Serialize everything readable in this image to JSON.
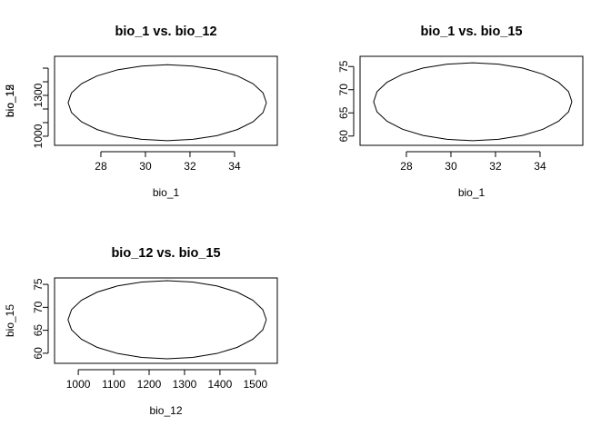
{
  "chart_data": [
    {
      "type": "line",
      "title": "bio_1 vs. bio_12",
      "x_label": "bio_1",
      "y_label": "bio_12",
      "color": "#000000",
      "x": [
        35.43,
        35.28,
        34.83,
        34.13,
        33.21,
        32.13,
        30.98,
        29.83,
        28.75,
        27.83,
        27.13,
        26.68,
        26.53,
        26.68,
        27.13,
        27.83,
        28.75,
        29.83,
        30.98,
        32.13,
        33.21,
        34.13,
        34.83,
        35.28,
        35.43
      ],
      "series": [
        {
          "name": "bio_12",
          "color": "#000000",
          "values": [
            1246,
            1318,
            1386,
            1443,
            1488,
            1515,
            1525,
            1515,
            1488,
            1443,
            1386,
            1318,
            1246,
            1174,
            1106,
            1049,
            1004,
            977,
            967,
            977,
            1004,
            1049,
            1106,
            1174,
            1246
          ]
        }
      ],
      "xlim": [
        25.92,
        35.92
      ],
      "xticks": [
        28,
        30,
        32,
        34
      ],
      "ylim": [
        933,
        1587
      ],
      "yticks": [
        1000,
        1100,
        1200,
        1300,
        1400,
        1500
      ],
      "grid": false
    },
    {
      "type": "line",
      "title": "bio_1 vs. bio_15",
      "x_label": "bio_1",
      "y_label": "bio_15",
      "color": "#000000",
      "x": [
        35.43,
        35.28,
        34.83,
        34.13,
        33.21,
        32.13,
        30.98,
        29.83,
        28.75,
        27.83,
        27.13,
        26.68,
        26.53,
        26.68,
        27.13,
        27.83,
        28.75,
        29.83,
        30.98,
        32.13,
        33.21,
        34.13,
        34.83,
        35.28,
        35.43
      ],
      "series": [
        {
          "name": "bio_15",
          "color": "#000000",
          "values": [
            67.4,
            69.57,
            71.6,
            73.34,
            74.67,
            75.51,
            75.8,
            75.51,
            74.67,
            73.34,
            71.6,
            69.57,
            67.4,
            65.23,
            63.2,
            61.46,
            60.13,
            59.29,
            59.0,
            59.29,
            60.13,
            61.46,
            63.2,
            65.23,
            67.4
          ]
        }
      ],
      "xlim": [
        25.92,
        35.92
      ],
      "xticks": [
        28,
        30,
        32,
        34
      ],
      "ylim": [
        58.0,
        77.2
      ],
      "yticks": [
        60,
        65,
        70,
        75
      ],
      "grid": false
    },
    {
      "type": "line",
      "title": "bio_12 vs. bio_15",
      "x_label": "bio_12",
      "y_label": "bio_15",
      "color": "#000000",
      "x": [
        1531,
        1521,
        1493,
        1449,
        1391,
        1323,
        1251,
        1179,
        1111,
        1053,
        1009,
        981,
        971,
        981,
        1009,
        1053,
        1111,
        1179,
        1251,
        1323,
        1391,
        1449,
        1493,
        1521,
        1531
      ],
      "series": [
        {
          "name": "bio_15",
          "color": "#000000",
          "values": [
            67.3,
            69.5,
            71.55,
            73.31,
            74.66,
            75.51,
            75.8,
            75.51,
            74.66,
            73.31,
            71.55,
            69.5,
            67.3,
            65.1,
            63.05,
            61.29,
            59.94,
            59.09,
            58.8,
            59.09,
            59.94,
            61.29,
            63.05,
            65.1,
            67.3
          ]
        }
      ],
      "xlim": [
        933,
        1562
      ],
      "xticks": [
        1000,
        1100,
        1200,
        1300,
        1400,
        1500
      ],
      "ylim": [
        57.8,
        76.4
      ],
      "yticks": [
        60,
        65,
        70,
        75
      ],
      "grid": false
    }
  ]
}
